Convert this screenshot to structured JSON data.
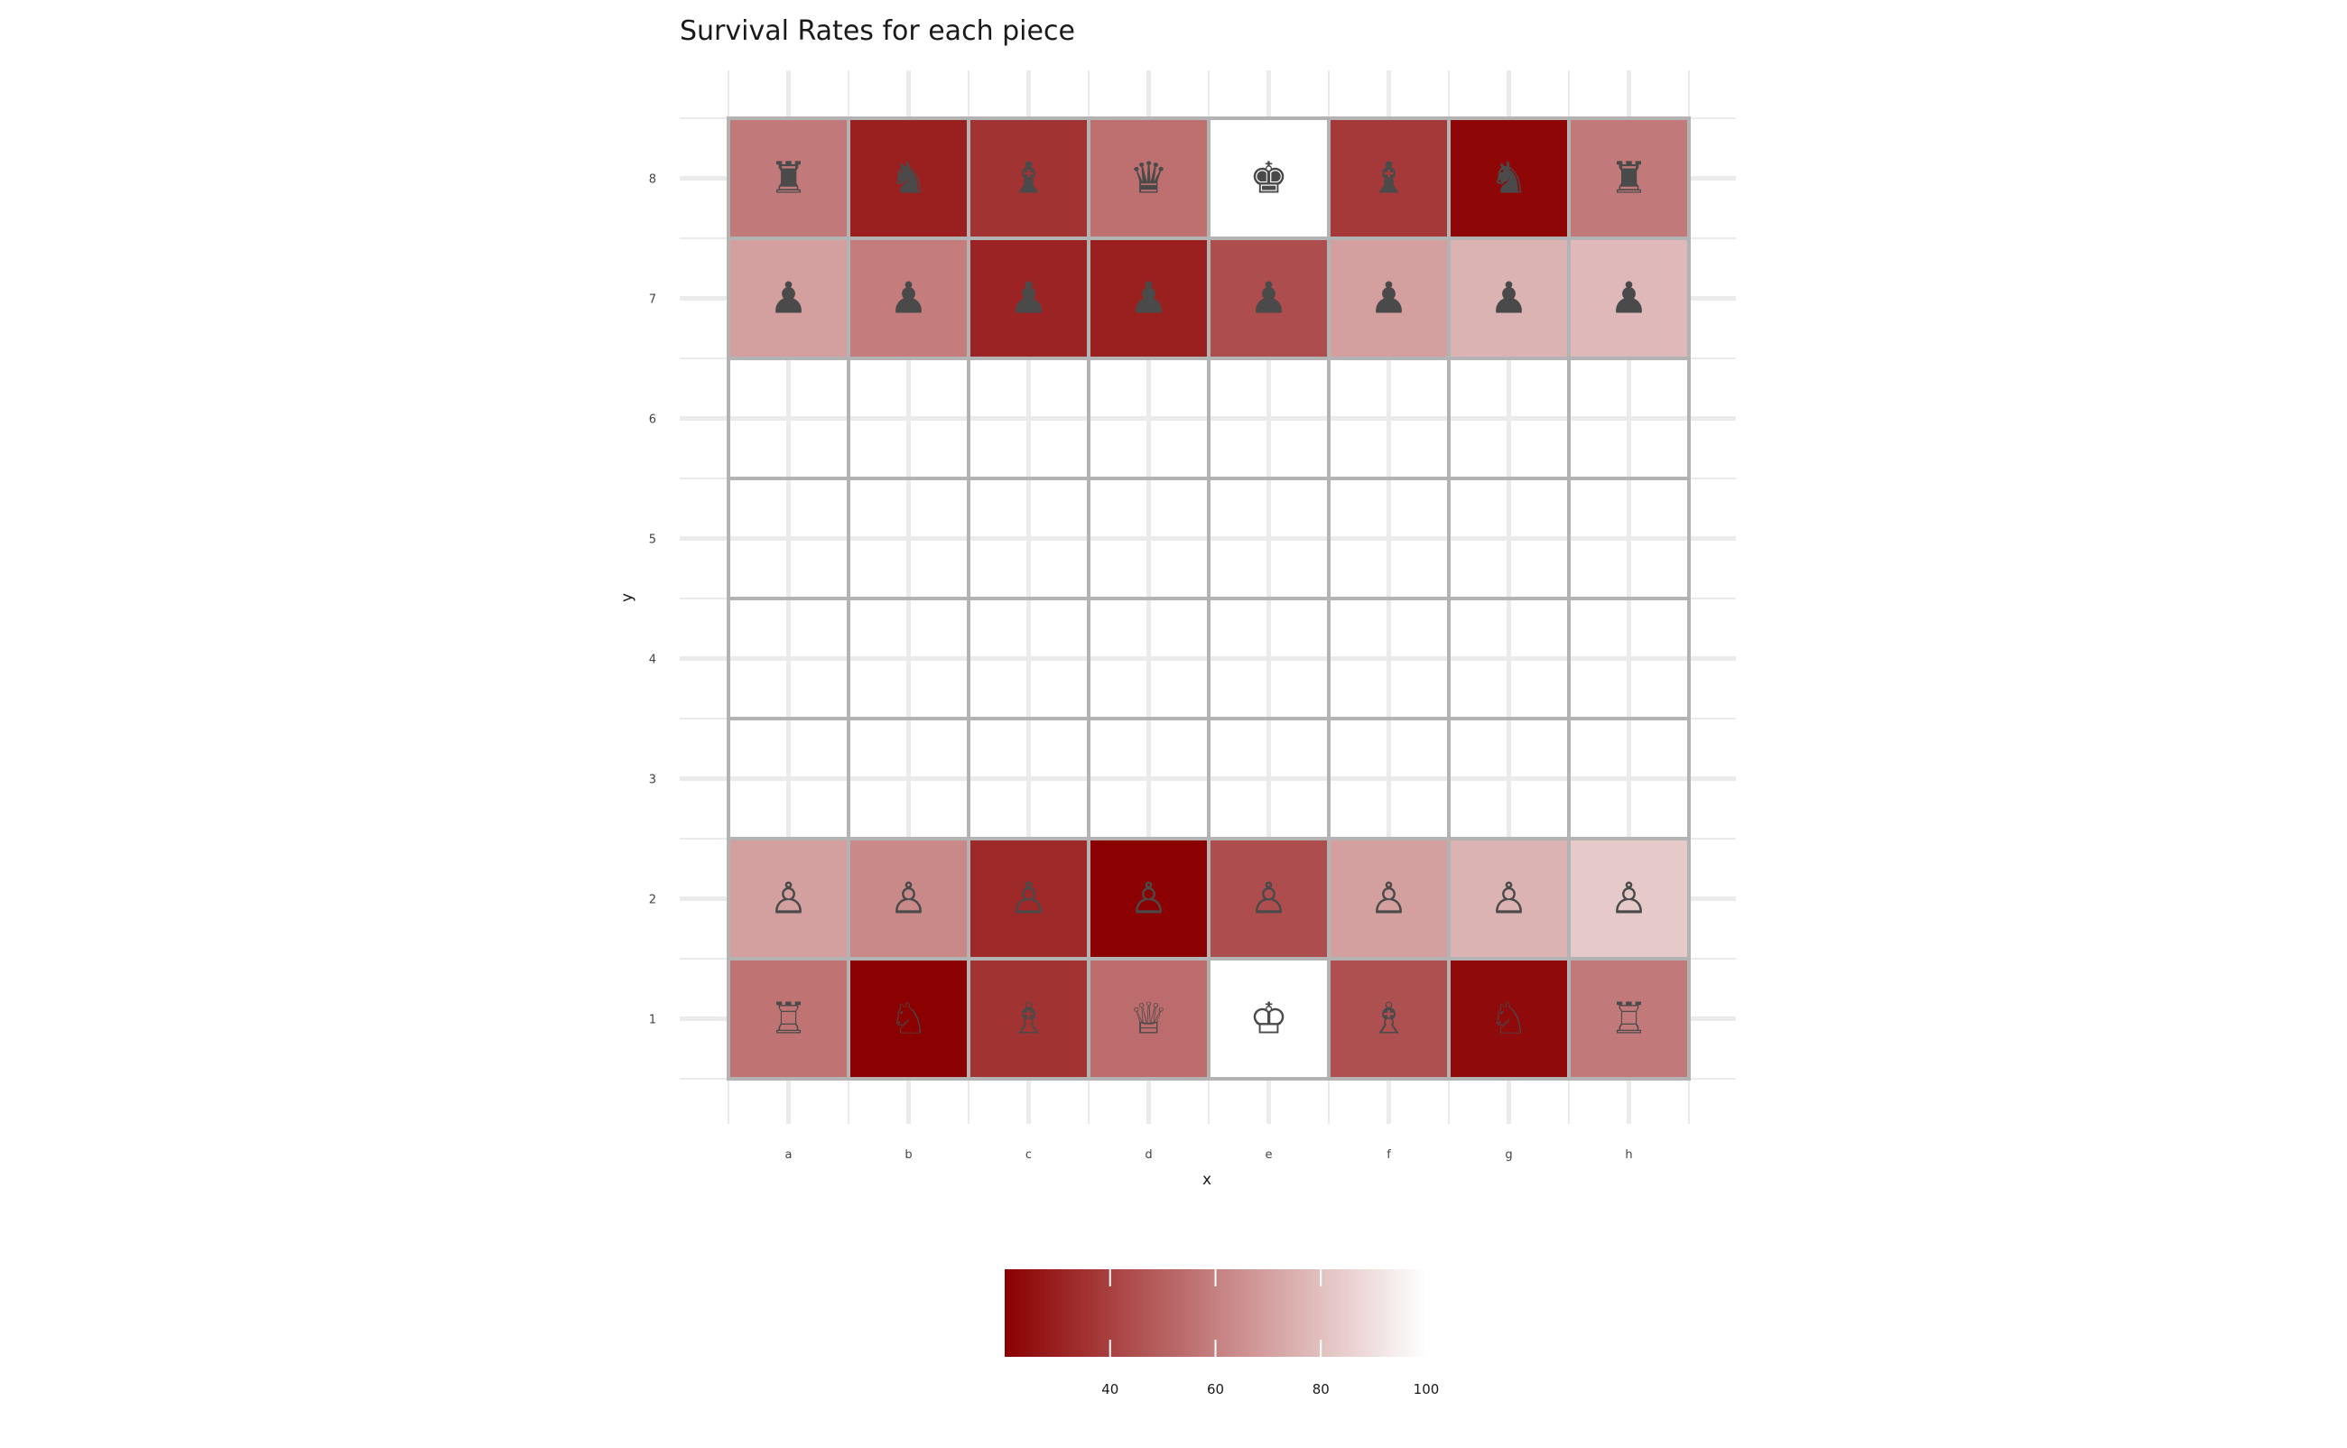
{
  "chart_data": {
    "type": "heatmap",
    "title": "Survival Rates for each piece",
    "xlabel": "x",
    "ylabel": "y",
    "x_categories": [
      "a",
      "b",
      "c",
      "d",
      "e",
      "f",
      "g",
      "h"
    ],
    "y_categories": [
      "1",
      "2",
      "3",
      "4",
      "5",
      "6",
      "7",
      "8"
    ],
    "fill_range": [
      20,
      100
    ],
    "color_low": "#8b0000",
    "color_high": "#ffffff",
    "grid": true,
    "legend": {
      "position": "bottom",
      "ticks": [
        40,
        60,
        80,
        100
      ]
    },
    "cells": [
      {
        "x": "a",
        "y": "8",
        "piece": "black-rook",
        "glyph": "♜",
        "value": 58
      },
      {
        "x": "b",
        "y": "8",
        "piece": "black-knight",
        "glyph": "♞",
        "value": 30
      },
      {
        "x": "c",
        "y": "8",
        "piece": "black-bishop",
        "glyph": "♝",
        "value": 36
      },
      {
        "x": "d",
        "y": "8",
        "piece": "black-queen",
        "glyph": "♛",
        "value": 55
      },
      {
        "x": "e",
        "y": "8",
        "piece": "black-king",
        "glyph": "♚",
        "value": 100
      },
      {
        "x": "f",
        "y": "8",
        "piece": "black-bishop",
        "glyph": "♝",
        "value": 38
      },
      {
        "x": "g",
        "y": "8",
        "piece": "black-knight",
        "glyph": "♞",
        "value": 22
      },
      {
        "x": "h",
        "y": "8",
        "piece": "black-rook",
        "glyph": "♜",
        "value": 58
      },
      {
        "x": "a",
        "y": "7",
        "piece": "black-pawn",
        "glyph": "♟",
        "value": 70
      },
      {
        "x": "b",
        "y": "7",
        "piece": "black-pawn",
        "glyph": "♟",
        "value": 59
      },
      {
        "x": "c",
        "y": "7",
        "piece": "black-pawn",
        "glyph": "♟",
        "value": 31
      },
      {
        "x": "d",
        "y": "7",
        "piece": "black-pawn",
        "glyph": "♟",
        "value": 30
      },
      {
        "x": "e",
        "y": "7",
        "piece": "black-pawn",
        "glyph": "♟",
        "value": 44
      },
      {
        "x": "f",
        "y": "7",
        "piece": "black-pawn",
        "glyph": "♟",
        "value": 70
      },
      {
        "x": "g",
        "y": "7",
        "piece": "black-pawn",
        "glyph": "♟",
        "value": 76
      },
      {
        "x": "h",
        "y": "7",
        "piece": "black-pawn",
        "glyph": "♟",
        "value": 78
      },
      {
        "x": "a",
        "y": "2",
        "piece": "white-pawn",
        "glyph": "♙",
        "value": 70
      },
      {
        "x": "b",
        "y": "2",
        "piece": "white-pawn",
        "glyph": "♙",
        "value": 63
      },
      {
        "x": "c",
        "y": "2",
        "piece": "white-pawn",
        "glyph": "♙",
        "value": 33
      },
      {
        "x": "d",
        "y": "2",
        "piece": "white-pawn",
        "glyph": "♙",
        "value": 20
      },
      {
        "x": "e",
        "y": "2",
        "piece": "white-pawn",
        "glyph": "♙",
        "value": 44
      },
      {
        "x": "f",
        "y": "2",
        "piece": "white-pawn",
        "glyph": "♙",
        "value": 70
      },
      {
        "x": "g",
        "y": "2",
        "piece": "white-pawn",
        "glyph": "♙",
        "value": 76
      },
      {
        "x": "h",
        "y": "2",
        "piece": "white-pawn",
        "glyph": "♙",
        "value": 83
      },
      {
        "x": "a",
        "y": "1",
        "piece": "white-rook",
        "glyph": "♖",
        "value": 56
      },
      {
        "x": "b",
        "y": "1",
        "piece": "white-knight",
        "glyph": "♘",
        "value": 20
      },
      {
        "x": "c",
        "y": "1",
        "piece": "white-bishop",
        "glyph": "♗",
        "value": 36
      },
      {
        "x": "d",
        "y": "1",
        "piece": "white-queen",
        "glyph": "♕",
        "value": 54
      },
      {
        "x": "e",
        "y": "1",
        "piece": "white-king",
        "glyph": "♔",
        "value": 100
      },
      {
        "x": "f",
        "y": "1",
        "piece": "white-bishop",
        "glyph": "♗",
        "value": 45
      },
      {
        "x": "g",
        "y": "1",
        "piece": "white-knight",
        "glyph": "♘",
        "value": 23
      },
      {
        "x": "h",
        "y": "1",
        "piece": "white-rook",
        "glyph": "♖",
        "value": 58
      }
    ]
  }
}
